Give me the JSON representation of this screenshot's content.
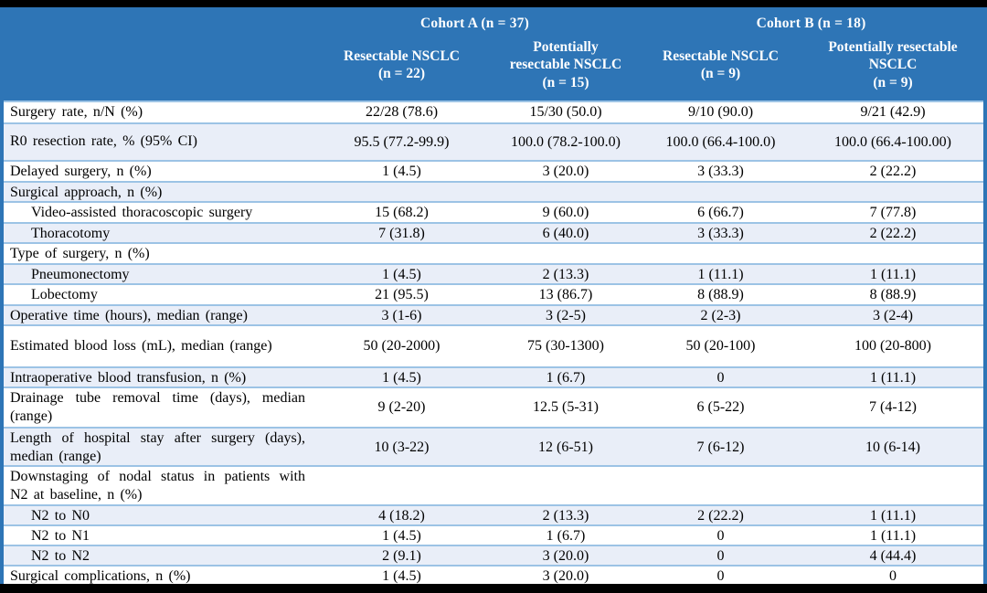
{
  "colors": {
    "header_bg": "#2E75B6",
    "header_text": "#FFFFFF",
    "band_bg": "#E9EEF8",
    "row_line": "#9CC3E5",
    "frame": "#000000",
    "body_text": "#000000"
  },
  "table": {
    "cohort_headers": [
      "Cohort A (n = 37)",
      "Cohort B (n = 18)"
    ],
    "column_headers": [
      {
        "lines": [
          "Resectable NSCLC",
          "(n = 22)"
        ]
      },
      {
        "lines": [
          "Potentially",
          "resectable NSCLC",
          "(n = 15)"
        ]
      },
      {
        "lines": [
          "Resectable NSCLC",
          "(n = 9)"
        ]
      },
      {
        "lines": [
          "Potentially resectable",
          "NSCLC",
          "(n = 9)"
        ]
      }
    ],
    "rows": [
      {
        "label": "Surgery rate, n/N (%)",
        "indent": false,
        "values": [
          "22/28 (78.6)",
          "15/30 (50.0)",
          "9/10 (90.0)",
          "9/21 (42.9)"
        ]
      },
      {
        "label": "R0 resection rate, % (95% CI)",
        "indent": false,
        "values": [
          "95.5 (77.2-99.9)",
          "100.0 (78.2-100.0)",
          "100.0 (66.4-100.0)",
          "100.0 (66.4-100.00)"
        ]
      },
      {
        "label": "Delayed surgery, n (%)",
        "indent": false,
        "values": [
          "1 (4.5)",
          "3 (20.0)",
          "3 (33.3)",
          "2 (22.2)"
        ]
      },
      {
        "label": "Surgical approach, n (%)",
        "indent": false,
        "values": [
          "",
          "",
          "",
          ""
        ]
      },
      {
        "label": "Video-assisted thoracoscopic surgery",
        "indent": true,
        "values": [
          "15 (68.2)",
          "9 (60.0)",
          "6 (66.7)",
          "7 (77.8)"
        ]
      },
      {
        "label": "Thoracotomy",
        "indent": true,
        "values": [
          "7 (31.8)",
          "6 (40.0)",
          "3 (33.3)",
          "2 (22.2)"
        ]
      },
      {
        "label": "Type of surgery, n (%)",
        "indent": false,
        "values": [
          "",
          "",
          "",
          ""
        ]
      },
      {
        "label": "Pneumonectomy",
        "indent": true,
        "values": [
          "1 (4.5)",
          "2 (13.3)",
          "1 (11.1)",
          "1 (11.1)"
        ]
      },
      {
        "label": "Lobectomy",
        "indent": true,
        "values": [
          "21 (95.5)",
          "13 (86.7)",
          "8 (88.9)",
          "8 (88.9)"
        ]
      },
      {
        "label": "Operative time (hours), median (range)",
        "indent": false,
        "values": [
          "3 (1-6)",
          "3 (2-5)",
          "2 (2-3)",
          "3 (2-4)"
        ]
      },
      {
        "label": "Estimated blood loss (mL), median (range)",
        "indent": false,
        "values": [
          "50 (20-2000)",
          "75 (30-1300)",
          "50 (20-100)",
          "100 (20-800)"
        ]
      },
      {
        "label": "Intraoperative blood transfusion, n (%)",
        "indent": false,
        "values": [
          "1 (4.5)",
          "1 (6.7)",
          "0",
          "1 (11.1)"
        ]
      },
      {
        "label": "Drainage tube removal time (days), median (range)",
        "indent": false,
        "values": [
          "9 (2-20)",
          "12.5 (5-31)",
          "6 (5-22)",
          "7 (4-12)"
        ]
      },
      {
        "label": "Length of hospital stay after surgery (days), median (range)",
        "indent": false,
        "values": [
          "10 (3-22)",
          "12 (6-51)",
          "7 (6-12)",
          "10 (6-14)"
        ]
      },
      {
        "label": "Downstaging of nodal status in patients with N2 at baseline, n (%)",
        "indent": false,
        "values": [
          "",
          "",
          "",
          ""
        ]
      },
      {
        "label": "N2 to N0",
        "indent": true,
        "values": [
          "4 (18.2)",
          "2 (13.3)",
          "2 (22.2)",
          "1 (11.1)"
        ]
      },
      {
        "label": "N2 to N1",
        "indent": true,
        "values": [
          "1 (4.5)",
          "1 (6.7)",
          "0",
          "1 (11.1)"
        ]
      },
      {
        "label": "N2 to N2",
        "indent": true,
        "values": [
          "2 (9.1)",
          "3 (20.0)",
          "0",
          "4 (44.4)"
        ]
      },
      {
        "label": "Surgical complications, n (%)",
        "indent": false,
        "values": [
          "1 (4.5)",
          "3 (20.0)",
          "0",
          "0"
        ]
      }
    ]
  }
}
